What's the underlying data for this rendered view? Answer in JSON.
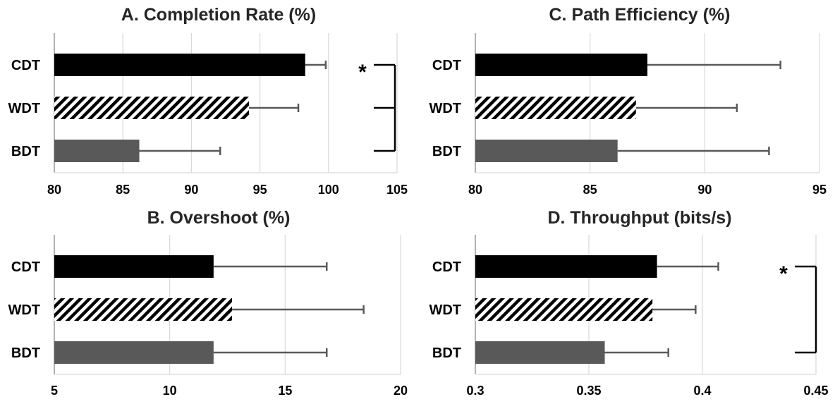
{
  "colors": {
    "CDT": "#000000",
    "WDT": "hatch",
    "BDT": "#595959",
    "gridline": "#d9d9d9",
    "errorbar": "#595959",
    "bracket": "#000000"
  },
  "chart_data": [
    {
      "type": "bar",
      "orientation": "horizontal",
      "title": "A. Completion Rate (%)",
      "categories": [
        "CDT",
        "WDT",
        "BDT"
      ],
      "values": [
        98.3,
        94.2,
        86.2
      ],
      "errors": [
        1.5,
        3.6,
        5.9
      ],
      "xlim": [
        80,
        105
      ],
      "xticks": [
        "80",
        "85",
        "90",
        "95",
        "100",
        "105"
      ],
      "grid": true,
      "significance": {
        "label": "*",
        "categories": [
          "CDT",
          "WDT",
          "BDT"
        ]
      }
    },
    {
      "type": "bar",
      "orientation": "horizontal",
      "title": "B. Overshoot (%)",
      "categories": [
        "CDT",
        "WDT",
        "BDT"
      ],
      "values": [
        11.9,
        12.7,
        11.9
      ],
      "errors": [
        4.9,
        5.7,
        4.9
      ],
      "xlim": [
        5,
        20
      ],
      "xticks": [
        "5",
        "10",
        "15",
        "20"
      ],
      "grid": true
    },
    {
      "type": "bar",
      "orientation": "horizontal",
      "title": "C. Path Efficiency (%)",
      "categories": [
        "CDT",
        "WDT",
        "BDT"
      ],
      "values": [
        87.5,
        87.0,
        86.2
      ],
      "errors": [
        5.8,
        4.4,
        6.6
      ],
      "xlim": [
        80,
        95
      ],
      "xticks": [
        "80",
        "85",
        "90",
        "95"
      ],
      "grid": true
    },
    {
      "type": "bar",
      "orientation": "horizontal",
      "title": "D. Throughput (bits/s)",
      "categories": [
        "CDT",
        "WDT",
        "BDT"
      ],
      "values": [
        0.38,
        0.378,
        0.357
      ],
      "errors": [
        0.027,
        0.019,
        0.028
      ],
      "xlim": [
        0.3,
        0.45
      ],
      "xticks": [
        "0.3",
        "0.35",
        "0.4",
        "0.45"
      ],
      "grid": true,
      "significance": {
        "label": "*",
        "categories": [
          "CDT",
          "BDT"
        ]
      }
    }
  ]
}
